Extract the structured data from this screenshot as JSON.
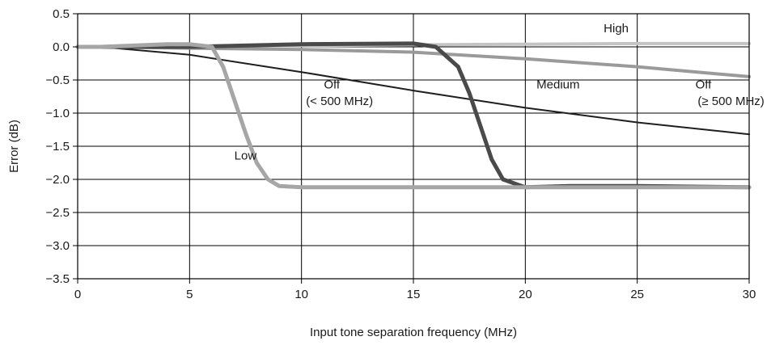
{
  "chart_data": {
    "type": "line",
    "title": "",
    "xlabel": "Input tone separation frequency (MHz)",
    "ylabel": "Error (dB)",
    "xlim": [
      0,
      30
    ],
    "ylim": [
      -3.5,
      0.5
    ],
    "grid": true,
    "x_ticks": [
      0,
      5,
      10,
      15,
      20,
      25,
      30
    ],
    "x_tick_labels": [
      "0",
      "5",
      "10",
      "15",
      "20",
      "25",
      "30"
    ],
    "y_ticks": [
      0.5,
      0.0,
      -0.5,
      -1.0,
      -1.5,
      -2.0,
      -2.5,
      -3.0,
      -3.5
    ],
    "y_tick_labels": [
      "0.5",
      "0.0",
      "−0.5",
      "−1.0",
      "−1.5",
      "−2.0",
      "−2.5",
      "−3.0",
      "−3.5"
    ],
    "series": [
      {
        "name": "High",
        "color": "#c4c4c4",
        "x": [
          0,
          1,
          5,
          10,
          15,
          20,
          25,
          30
        ],
        "y": [
          0,
          0,
          0.01,
          0.02,
          0.03,
          0.04,
          0.05,
          0.05
        ]
      },
      {
        "name": "Off (< 500 MHz)",
        "color": "#9a9a9a",
        "x": [
          0,
          1,
          5,
          10,
          15,
          20,
          25,
          30
        ],
        "y": [
          0,
          0,
          -0.02,
          -0.04,
          -0.08,
          -0.18,
          -0.3,
          -0.45
        ]
      },
      {
        "name": "Off (≥ 500 MHz)",
        "color": "#1e1e1e",
        "x": [
          0,
          1,
          5,
          10,
          15,
          20,
          25,
          30
        ],
        "y": [
          0,
          0,
          -0.12,
          -0.38,
          -0.66,
          -0.92,
          -1.14,
          -1.32
        ]
      },
      {
        "name": "Medium",
        "color": "#4a4a4a",
        "x": [
          0,
          1,
          5,
          10,
          15,
          16,
          17,
          17.5,
          18,
          18.5,
          19,
          20,
          22,
          25,
          30
        ],
        "y": [
          0,
          0,
          0,
          0.04,
          0.05,
          0.0,
          -0.3,
          -0.7,
          -1.2,
          -1.7,
          -2.0,
          -2.12,
          -2.1,
          -2.1,
          -2.12
        ]
      },
      {
        "name": "Low",
        "color": "#a6a6a6",
        "x": [
          0,
          1,
          4,
          5,
          6,
          6.5,
          7,
          7.5,
          8,
          8.5,
          9,
          10,
          15,
          20,
          25,
          30
        ],
        "y": [
          0,
          0,
          0.04,
          0.04,
          0,
          -0.3,
          -0.8,
          -1.3,
          -1.75,
          -2.0,
          -2.1,
          -2.12,
          -2.12,
          -2.12,
          -2.12,
          -2.12
        ]
      }
    ],
    "annotations": [
      {
        "text": "High",
        "x": 23.5,
        "y": 0.22
      },
      {
        "text": "Off",
        "x": 11,
        "y": -0.63
      },
      {
        "text": "(< 500 MHz)",
        "x": 10.2,
        "y": -0.88
      },
      {
        "text": "Medium",
        "x": 20.5,
        "y": -0.63
      },
      {
        "text": "Off",
        "x": 27.6,
        "y": -0.63
      },
      {
        "text": "(≥ 500 MHz)",
        "x": 27.7,
        "y": -0.88
      },
      {
        "text": "Low",
        "x": 7,
        "y": -1.7
      }
    ]
  }
}
